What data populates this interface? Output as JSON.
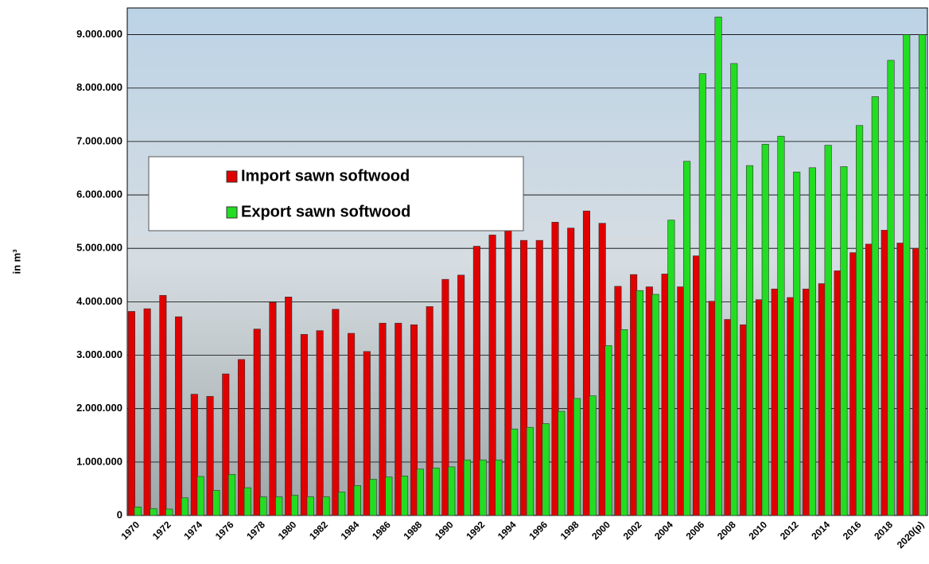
{
  "chart_data": {
    "type": "bar",
    "y_label": "in m³",
    "categories": [
      "1970",
      null,
      "1972",
      null,
      "1974",
      null,
      "1976",
      null,
      "1978",
      null,
      "1980",
      null,
      "1982",
      null,
      "1984",
      null,
      "1986",
      null,
      "1988",
      null,
      "1990",
      null,
      "1992",
      null,
      "1994",
      null,
      "1996",
      null,
      "1998",
      null,
      "2000",
      null,
      "2002",
      null,
      "2004",
      null,
      "2006",
      null,
      "2008",
      null,
      "2010",
      null,
      "2012",
      null,
      "2014",
      null,
      "2016",
      null,
      "2018",
      null,
      "2020(p)"
    ],
    "series": [
      {
        "name": "Import sawn softwood",
        "color": "#e00000",
        "values": [
          3820000,
          3870000,
          4120000,
          3720000,
          2270000,
          2230000,
          2650000,
          2920000,
          3490000,
          3990000,
          4090000,
          3390000,
          3460000,
          3860000,
          3410000,
          3070000,
          3600000,
          3600000,
          3570000,
          3910000,
          4420000,
          4500000,
          5040000,
          5250000,
          5350000,
          5150000,
          5150000,
          5490000,
          5380000,
          5700000,
          5470000,
          4290000,
          4510000,
          4280000,
          4520000,
          4280000,
          4860000,
          4010000,
          3670000,
          3570000,
          4040000,
          4240000,
          4080000,
          4240000,
          4340000,
          4580000,
          4920000,
          5080000,
          5340000,
          5100000,
          5000000
        ]
      },
      {
        "name": "Export sawn softwood",
        "color": "#22dd22",
        "values": [
          160000,
          130000,
          120000,
          330000,
          730000,
          470000,
          770000,
          520000,
          350000,
          350000,
          380000,
          350000,
          350000,
          440000,
          560000,
          680000,
          720000,
          740000,
          870000,
          890000,
          910000,
          1040000,
          1040000,
          1040000,
          1620000,
          1650000,
          1720000,
          1950000,
          2190000,
          2240000,
          3180000,
          3480000,
          4210000,
          4140000,
          5530000,
          6630000,
          8270000,
          9330000,
          8460000,
          6550000,
          6950000,
          7100000,
          6430000,
          6510000,
          6930000,
          6530000,
          7300000,
          7840000,
          8520000,
          9000000,
          9000000
        ]
      }
    ],
    "ylim": [
      0,
      9500000
    ],
    "yticks": [
      0,
      {
        "value": 1000000,
        "label": "1.000.000"
      },
      {
        "value": 2000000,
        "label": "2.000.000"
      },
      {
        "value": 3000000,
        "label": "3.000.000"
      },
      {
        "value": 4000000,
        "label": "4.000.000"
      },
      {
        "value": 5000000,
        "label": "5.000.000"
      },
      {
        "value": 6000000,
        "label": "6.000.000"
      },
      {
        "value": 7000000,
        "label": "7.000.000"
      },
      {
        "value": 8000000,
        "label": "8.000.000"
      },
      {
        "value": 9000000,
        "label": "9.000.000"
      }
    ],
    "grid": true
  }
}
